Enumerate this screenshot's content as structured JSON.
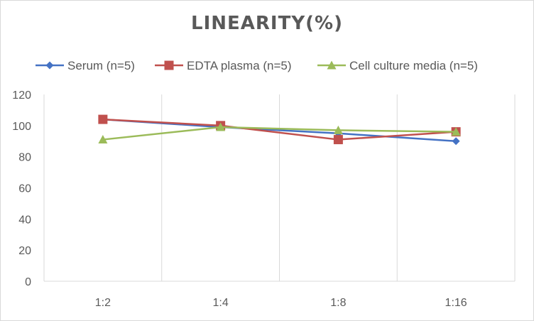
{
  "chart_data": {
    "type": "line",
    "title": "LINEARITY(%)",
    "xlabel": "",
    "ylabel": "",
    "categories": [
      "1:2",
      "1:4",
      "1:8",
      "1:16"
    ],
    "ylim": [
      0,
      120
    ],
    "yticks": [
      0,
      20,
      40,
      60,
      80,
      100,
      120
    ],
    "grid": "vertical category separators",
    "legend_position": "top",
    "series": [
      {
        "name": "Serum (n=5)",
        "values": [
          104,
          99,
          95,
          90
        ],
        "color": "#4472c4",
        "marker": "diamond"
      },
      {
        "name": "EDTA plasma (n=5)",
        "values": [
          104,
          100,
          91,
          96
        ],
        "color": "#c0504d",
        "marker": "square"
      },
      {
        "name": "Cell culture media (n=5)",
        "values": [
          91,
          99,
          97,
          96
        ],
        "color": "#9bbb59",
        "marker": "triangle"
      }
    ]
  }
}
